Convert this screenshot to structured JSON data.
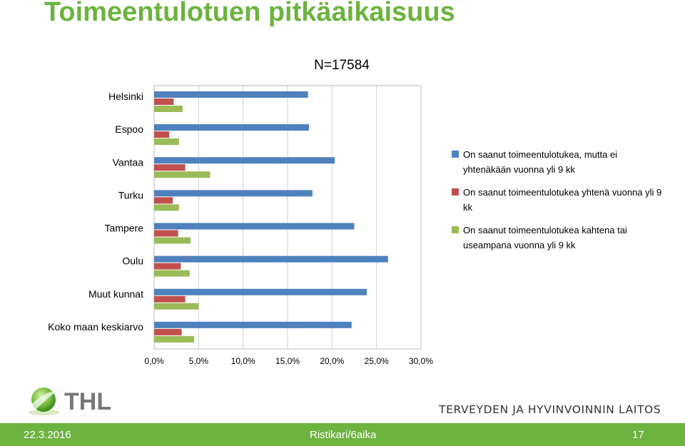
{
  "slide": {
    "title": "Toimeentulotuen pitkäaikaisuus",
    "organization_short": "THL",
    "organization_full": "TERVEYDEN JA HYVINVOINNIN LAITOS",
    "footer": {
      "date": "22.3.2016",
      "author": "Ristikari/6aika",
      "page": "17"
    }
  },
  "chart_data": {
    "type": "bar",
    "orientation": "horizontal",
    "title": "N=17584",
    "categories": [
      "Helsinki",
      "Espoo",
      "Vantaa",
      "Turku",
      "Tampere",
      "Oulu",
      "Muut kunnat",
      "Koko maan keskiarvo"
    ],
    "series": [
      {
        "name": "On saanut toimeentulotukea, mutta ei yhtenäkään vuonna yli 9 kk",
        "color": "#4f81bd",
        "values": [
          17.3,
          17.4,
          20.3,
          17.8,
          22.5,
          26.3,
          23.9,
          22.2
        ]
      },
      {
        "name": "On saanut toimeentulotukea yhtenä vuonna yli 9 kk",
        "color": "#c0504d",
        "values": [
          2.2,
          1.7,
          3.5,
          2.1,
          2.7,
          3.0,
          3.5,
          3.1
        ]
      },
      {
        "name": "On saanut toimeentulotukea kahtena tai useampana vuonna yli 9 kk",
        "color": "#9bbb59",
        "values": [
          3.2,
          2.8,
          6.3,
          2.8,
          4.1,
          4.0,
          5.0,
          4.5
        ]
      }
    ],
    "x_ticks": [
      "0,0%",
      "5,0%",
      "10,0%",
      "15,0%",
      "20,0%",
      "25,0%",
      "30,0%"
    ],
    "xlim": [
      0,
      30
    ],
    "xlabel": "",
    "ylabel": "",
    "grid": true,
    "legend_position": "right"
  }
}
